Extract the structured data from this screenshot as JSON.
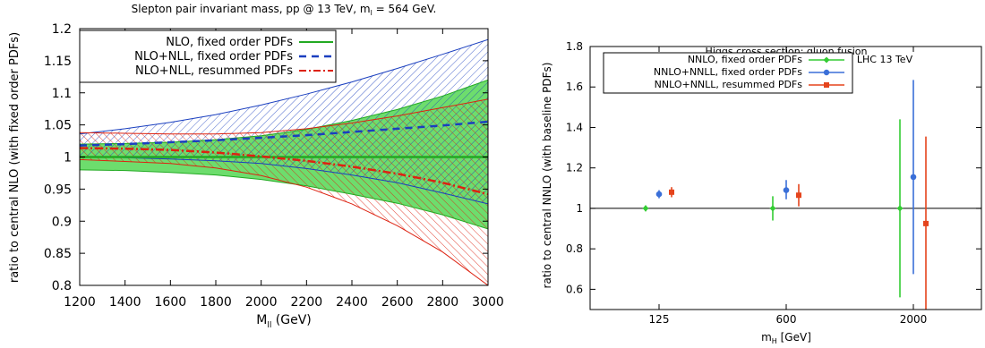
{
  "chart_data": [
    {
      "type": "area",
      "title": "Slepton pair invariant mass, pp @ 13 TeV, m",
      "title_sub": "l",
      "title_tail": " = 564 GeV.",
      "xlabel": "M",
      "xlabel_sub": "ll",
      "xlabel_tail": " (GeV)",
      "ylabel": "ratio to central NLO (with fixed order PDFs)",
      "xlim": [
        1200,
        3000
      ],
      "ylim": [
        0.8,
        1.2
      ],
      "x_ticks": [
        1200,
        1400,
        1600,
        1800,
        2000,
        2200,
        2400,
        2600,
        2800,
        3000
      ],
      "y_ticks": [
        "0.8",
        "0.85",
        "0.9",
        "0.95",
        "1",
        "1.05",
        "1.1",
        "1.15",
        "1.2"
      ],
      "x": [
        1200,
        1400,
        1600,
        1800,
        2000,
        2200,
        2400,
        2600,
        2800,
        3000
      ],
      "series": [
        {
          "name": "NLO, fixed order PDFs",
          "color": "#22aa22",
          "style": "solid",
          "central": [
            1.0,
            1.0,
            1.0,
            1.0,
            1.0,
            1.0,
            1.0,
            1.0,
            1.0,
            1.0
          ],
          "upper": [
            1.02,
            1.021,
            1.023,
            1.027,
            1.033,
            1.043,
            1.057,
            1.074,
            1.095,
            1.12
          ],
          "lower": [
            0.98,
            0.979,
            0.976,
            0.972,
            0.965,
            0.955,
            0.942,
            0.928,
            0.91,
            0.888
          ],
          "band": "solid"
        },
        {
          "name": "NLO+NLL, fixed order PDFs",
          "color": "#1a3fbf",
          "style": "dashed",
          "central": [
            1.018,
            1.02,
            1.023,
            1.026,
            1.03,
            1.034,
            1.039,
            1.044,
            1.049,
            1.055
          ],
          "upper": [
            1.036,
            1.044,
            1.054,
            1.066,
            1.081,
            1.098,
            1.117,
            1.138,
            1.16,
            1.183
          ],
          "lower": [
            1.0,
            0.999,
            0.997,
            0.994,
            0.99,
            0.982,
            0.972,
            0.96,
            0.944,
            0.927
          ],
          "band": "hatch-blue"
        },
        {
          "name": "NLO+NLL, resummed PDFs",
          "color": "#dd2211",
          "style": "dashdot",
          "central": [
            1.014,
            1.013,
            1.011,
            1.007,
            1.001,
            0.994,
            0.985,
            0.974,
            0.96,
            0.942
          ],
          "upper": [
            1.038,
            1.037,
            1.036,
            1.036,
            1.038,
            1.044,
            1.053,
            1.064,
            1.077,
            1.09
          ],
          "lower": [
            0.996,
            0.993,
            0.99,
            0.983,
            0.971,
            0.953,
            0.927,
            0.893,
            0.852,
            0.8
          ],
          "band": "hatch-red"
        }
      ],
      "legend_position": "top-left"
    },
    {
      "type": "scatter",
      "title": "Higgs cross section: gluon fusion",
      "xlabel": "m",
      "xlabel_sub": "H",
      "xlabel_tail": " [GeV]",
      "ylabel": "ratio to central NNLO (with baseline PDFs)",
      "ylim": [
        0.5,
        1.8
      ],
      "y_ticks": [
        "0.6",
        "0.8",
        "1",
        "1.2",
        "1.4",
        "1.6",
        "1.8"
      ],
      "x_tick_labels": [
        "125",
        "600",
        "2000"
      ],
      "annotation": "LHC 13 TeV",
      "series": [
        {
          "name": "NNLO, fixed order PDFs",
          "color": "#33cc33",
          "marker": "diamond",
          "points": [
            {
              "x": "125",
              "y": 1.0,
              "err_low": 0.015,
              "err_high": 0.015
            },
            {
              "x": "600",
              "y": 1.0,
              "err_low": 0.06,
              "err_high": 0.06
            },
            {
              "x": "2000",
              "y": 1.0,
              "err_low": 0.44,
              "err_high": 0.44
            }
          ]
        },
        {
          "name": "NNLO+NNLL, fixed order PDFs",
          "color": "#3a6fd8",
          "marker": "circle",
          "points": [
            {
              "x": "125",
              "y": 1.07,
              "err_low": 0.02,
              "err_high": 0.02
            },
            {
              "x": "600",
              "y": 1.09,
              "err_low": 0.045,
              "err_high": 0.05
            },
            {
              "x": "2000",
              "y": 1.155,
              "err_low": 0.48,
              "err_high": 0.48
            }
          ]
        },
        {
          "name": "NNLO+NNLL, resummed PDFs",
          "color": "#e5441c",
          "marker": "square",
          "points": [
            {
              "x": "125",
              "y": 1.08,
              "err_low": 0.025,
              "err_high": 0.025
            },
            {
              "x": "600",
              "y": 1.065,
              "err_low": 0.055,
              "err_high": 0.055
            },
            {
              "x": "2000",
              "y": 0.925,
              "err_low": 0.43,
              "err_high": 0.43
            }
          ]
        }
      ],
      "legend_position": "top-left"
    }
  ]
}
